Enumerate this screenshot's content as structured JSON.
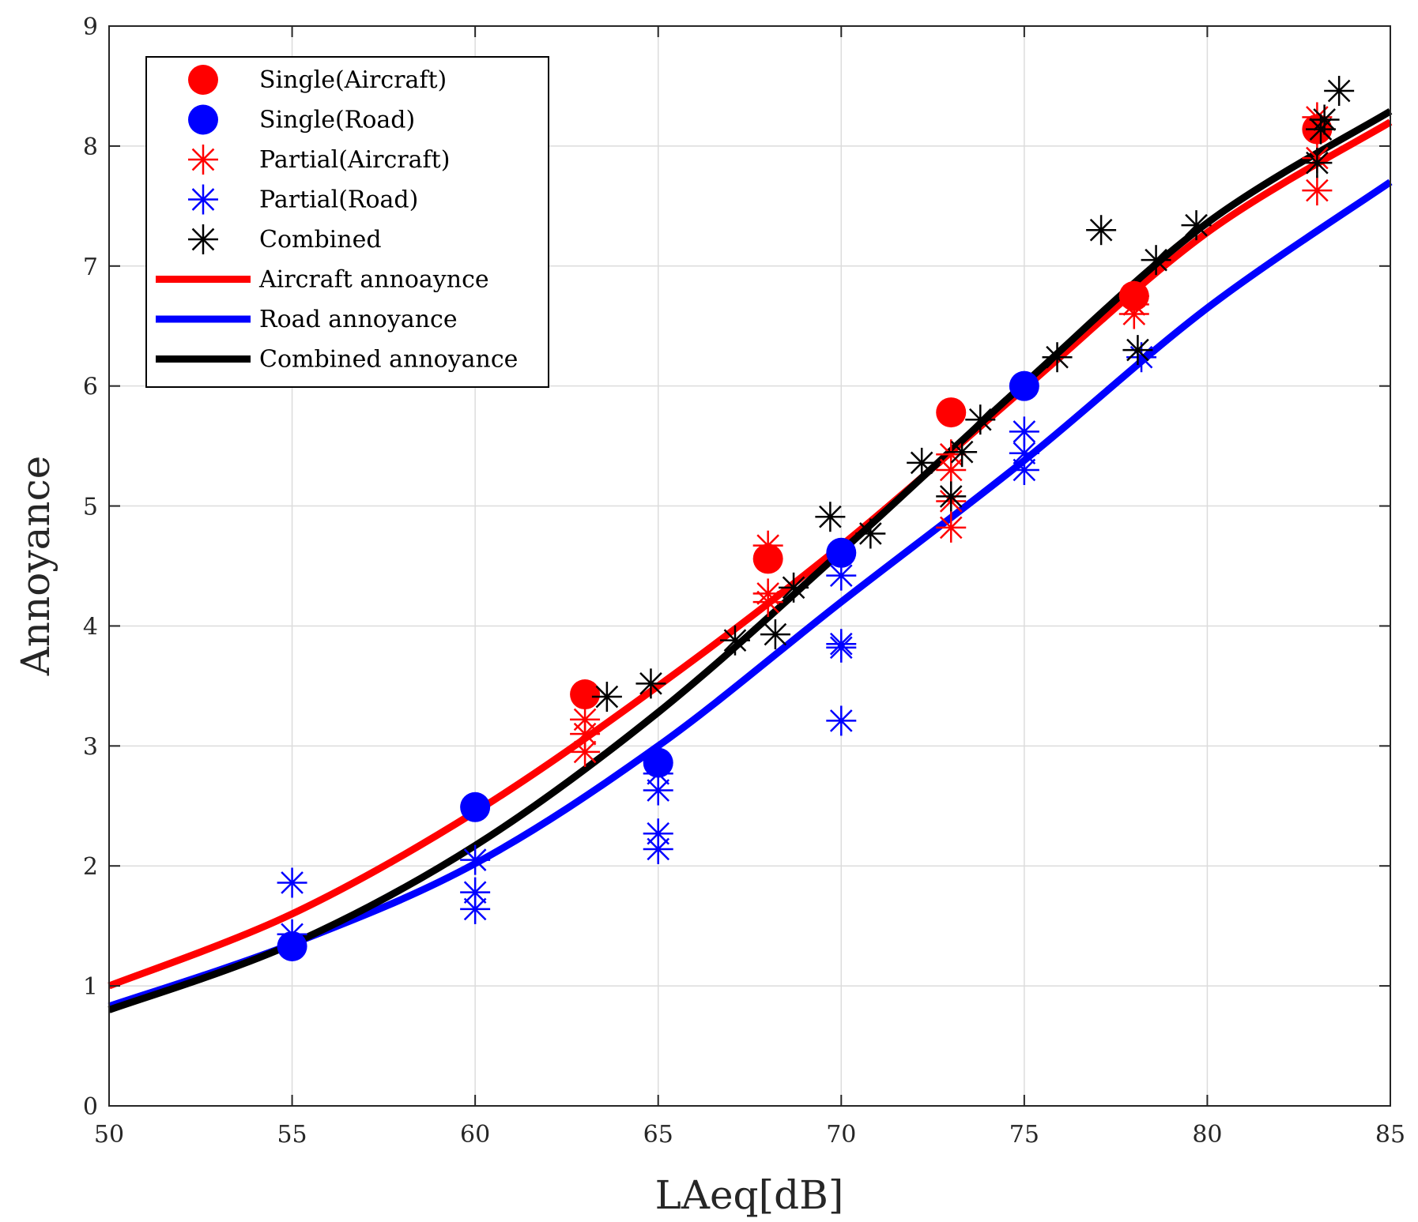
{
  "chart_data": {
    "type": "scatter",
    "title": "",
    "xlabel": "LAeq[dB]",
    "ylabel": "Annoyance",
    "xlim": [
      50,
      85
    ],
    "ylim": [
      0,
      9
    ],
    "xticks": [
      50,
      55,
      60,
      65,
      70,
      75,
      80,
      85
    ],
    "yticks": [
      0,
      1,
      2,
      3,
      4,
      5,
      6,
      7,
      8,
      9
    ],
    "grid": true,
    "legend_position": "top-left",
    "series": [
      {
        "name": "Single(Aircraft)",
        "kind": "dot",
        "color": "#ff0000",
        "points": [
          [
            63,
            3.43
          ],
          [
            68,
            4.56
          ],
          [
            73,
            5.78
          ],
          [
            78,
            6.75
          ],
          [
            83,
            8.14
          ]
        ]
      },
      {
        "name": "Single(Road)",
        "kind": "dot",
        "color": "#0000ff",
        "points": [
          [
            55,
            1.33
          ],
          [
            60,
            2.49
          ],
          [
            65,
            2.86
          ],
          [
            70,
            4.61
          ],
          [
            75,
            6.0
          ]
        ]
      },
      {
        "name": "Partial(Aircraft)",
        "kind": "star",
        "color": "#ff0000",
        "points": [
          [
            63,
            3.22
          ],
          [
            63,
            3.1
          ],
          [
            63,
            2.95
          ],
          [
            68,
            4.67
          ],
          [
            68,
            4.27
          ],
          [
            68,
            4.2
          ],
          [
            73,
            5.43
          ],
          [
            73,
            5.3
          ],
          [
            73,
            5.04
          ],
          [
            73,
            4.82
          ],
          [
            78,
            6.75
          ],
          [
            78,
            6.68
          ],
          [
            78,
            6.6
          ],
          [
            83,
            8.24
          ],
          [
            83,
            7.9
          ],
          [
            83,
            7.63
          ]
        ]
      },
      {
        "name": "Partial(Road)",
        "kind": "star",
        "color": "#0000ff",
        "points": [
          [
            55,
            1.86
          ],
          [
            55,
            1.43
          ],
          [
            60,
            2.05
          ],
          [
            60,
            1.78
          ],
          [
            60,
            1.64
          ],
          [
            65,
            2.77
          ],
          [
            65,
            2.63
          ],
          [
            65,
            2.27
          ],
          [
            65,
            2.14
          ],
          [
            70,
            4.42
          ],
          [
            70,
            3.85
          ],
          [
            70,
            3.82
          ],
          [
            70,
            3.21
          ],
          [
            75,
            5.62
          ],
          [
            75,
            5.44
          ],
          [
            75,
            5.3
          ],
          [
            78.2,
            6.24
          ]
        ]
      },
      {
        "name": "Combined",
        "kind": "star",
        "color": "#000000",
        "points": [
          [
            63.6,
            3.41
          ],
          [
            64.8,
            3.52
          ],
          [
            67.1,
            3.88
          ],
          [
            68.2,
            3.93
          ],
          [
            68.7,
            4.32
          ],
          [
            69.7,
            4.91
          ],
          [
            70.8,
            4.77
          ],
          [
            72.2,
            5.36
          ],
          [
            73.0,
            5.08
          ],
          [
            73.3,
            5.45
          ],
          [
            73.8,
            5.72
          ],
          [
            75.9,
            6.24
          ],
          [
            77.1,
            7.3
          ],
          [
            78.1,
            6.3
          ],
          [
            78.6,
            7.05
          ],
          [
            79.7,
            7.34
          ],
          [
            83.0,
            7.86
          ],
          [
            83.1,
            8.14
          ],
          [
            83.2,
            8.22
          ],
          [
            83.6,
            8.46
          ]
        ]
      },
      {
        "name": "Aircraft annoaynce",
        "kind": "line",
        "color": "#ff0000",
        "points": [
          [
            50,
            1.0
          ],
          [
            55,
            1.6
          ],
          [
            60,
            2.45
          ],
          [
            65,
            3.5
          ],
          [
            70,
            4.67
          ],
          [
            75,
            5.98
          ],
          [
            80,
            7.28
          ],
          [
            85,
            8.2
          ]
        ]
      },
      {
        "name": "Road annoyance",
        "kind": "line",
        "color": "#0000ff",
        "points": [
          [
            50,
            0.83
          ],
          [
            55,
            1.35
          ],
          [
            60,
            2.02
          ],
          [
            65,
            3.0
          ],
          [
            70,
            4.2
          ],
          [
            75,
            5.38
          ],
          [
            80,
            6.65
          ],
          [
            85,
            7.7
          ]
        ]
      },
      {
        "name": "Combined annoyance",
        "kind": "line",
        "color": "#000000",
        "points": [
          [
            50,
            0.8
          ],
          [
            55,
            1.35
          ],
          [
            60,
            2.17
          ],
          [
            65,
            3.28
          ],
          [
            70,
            4.62
          ],
          [
            75,
            6.02
          ],
          [
            80,
            7.36
          ],
          [
            85,
            8.29
          ]
        ]
      }
    ]
  }
}
